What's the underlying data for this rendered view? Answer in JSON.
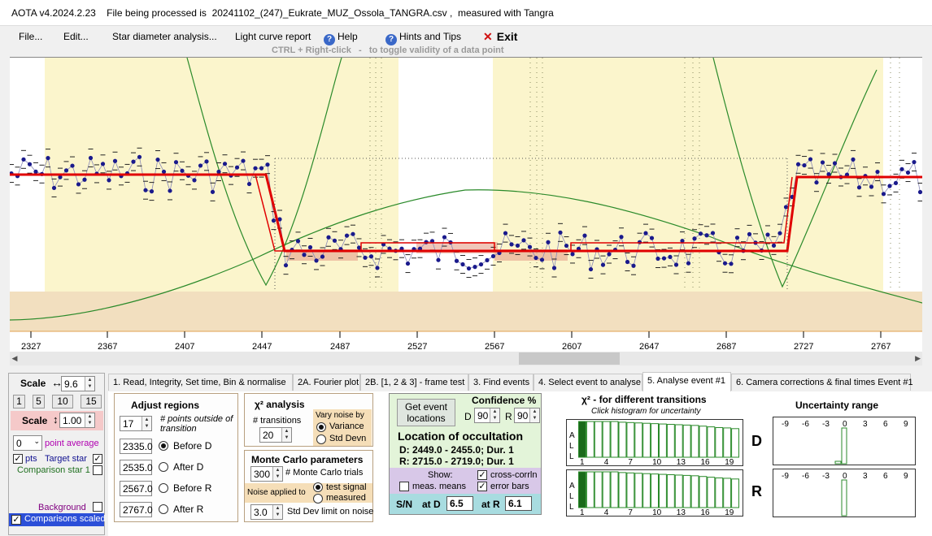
{
  "window": {
    "title": "AOTA v4.2024.2.23    File being processed is  20241102_(247)_Eukrate_MUZ_Ossola_TANGRA.csv ,  measured with Tangra"
  },
  "menu": {
    "file": "File...",
    "edit": "Edit...",
    "star_diameter": "Star diameter analysis...",
    "light_curve_report": "Light curve report",
    "help": "Help",
    "hints": "Hints and Tips",
    "exit": "Exit",
    "hint_text": "CTRL + Right-click   -   to toggle validity of a data point"
  },
  "plot": {
    "x_ticks": [
      "2327",
      "2367",
      "2407",
      "2447",
      "2487",
      "2527",
      "2567",
      "2607",
      "2647",
      "2687",
      "2727",
      "2767"
    ],
    "colors": {
      "highlight": "#fbf5cc",
      "lower_band": "#f2dfbf",
      "model": "#e00000",
      "data": "#1a1a8c",
      "chi": "#2a8a2a"
    }
  },
  "left": {
    "scale_h_label": "Scale",
    "scale_h_value": "9.6",
    "btns": [
      "1",
      "5",
      "10",
      "15"
    ],
    "scale_v_label": "Scale",
    "scale_v_value": "1.00",
    "avg_value": "0",
    "avg_label": "point average",
    "pts_label": "pts",
    "target_label": "Target star",
    "comp_label": "Comparison star 1",
    "background_label": "Background",
    "comparisons_scaled_label": "Comparisons scaled"
  },
  "tabs": [
    "1.  Read, Integrity, Set time, Bin & normalise",
    "2A. Fourier plot",
    "2B. [1, 2 & 3] - frame test",
    "3. Find events",
    "4. Select event to analyse",
    "5. Analyse event #1",
    "6. Camera corrections & final times Event #1"
  ],
  "adjust": {
    "title": "Adjust regions",
    "points_value": "17",
    "points_label": "# points outside of transition",
    "rows": [
      {
        "value": "2335.0",
        "label": "Before D",
        "selected": true
      },
      {
        "value": "2535.0",
        "label": "After D",
        "selected": false
      },
      {
        "value": "2567.0",
        "label": "Before R",
        "selected": false
      },
      {
        "value": "2767.0",
        "label": "After R",
        "selected": false
      }
    ]
  },
  "chi": {
    "title": "χ² analysis",
    "transitions_label": "# transitions",
    "transitions_value": "20",
    "vary_label": "Vary noise by",
    "variance": "Variance",
    "std_devn": "Std Devn"
  },
  "monte": {
    "title": "Monte Carlo parameters",
    "trials_value": "300",
    "trials_label": "# Monte Carlo trials",
    "noise_label": "Noise applied to",
    "test_signal": "test signal",
    "measured": "measured",
    "std_value": "3.0",
    "std_label": "Std Dev limit on noise"
  },
  "locate": {
    "button": "Get event locations",
    "confidence_label": "Confidence %",
    "d_label": "D",
    "d_value": "90",
    "r_label": "R",
    "r_value": "90",
    "title": "Location of occultation",
    "d_line": "D: 2449.0 - 2455.0; Dur. 1",
    "r_line": "R: 2715.0 - 2719.0; Dur. 1",
    "show_label": "Show:",
    "cross_corr": "cross-corrln",
    "meas_means": "meas. means",
    "error_bars": "error bars",
    "sn_label": "S/N",
    "at_d_label": "at D",
    "at_d_value": "6.5",
    "at_r_label": "at R",
    "at_r_value": "6.1"
  },
  "chi_hist": {
    "title": "χ² -  for different transitions",
    "subtitle": "Click histogram for uncertainty",
    "side_letters": [
      "A",
      "L",
      "L"
    ],
    "labels": [
      "1",
      "4",
      "7",
      "10",
      "13",
      "16",
      "19"
    ],
    "d_label": "D",
    "r_label": "R",
    "bars": [
      1.0,
      1.0,
      1.0,
      1.0,
      1.0,
      0.98,
      0.97,
      0.96,
      0.95,
      0.94,
      0.93,
      0.92,
      0.91,
      0.9,
      0.89,
      0.87,
      0.85,
      0.83,
      0.82,
      0.8
    ]
  },
  "uncertainty": {
    "title": "Uncertainty range",
    "ticks": [
      "-9",
      "-6",
      "-3",
      "0",
      "3",
      "6",
      "9"
    ]
  }
}
